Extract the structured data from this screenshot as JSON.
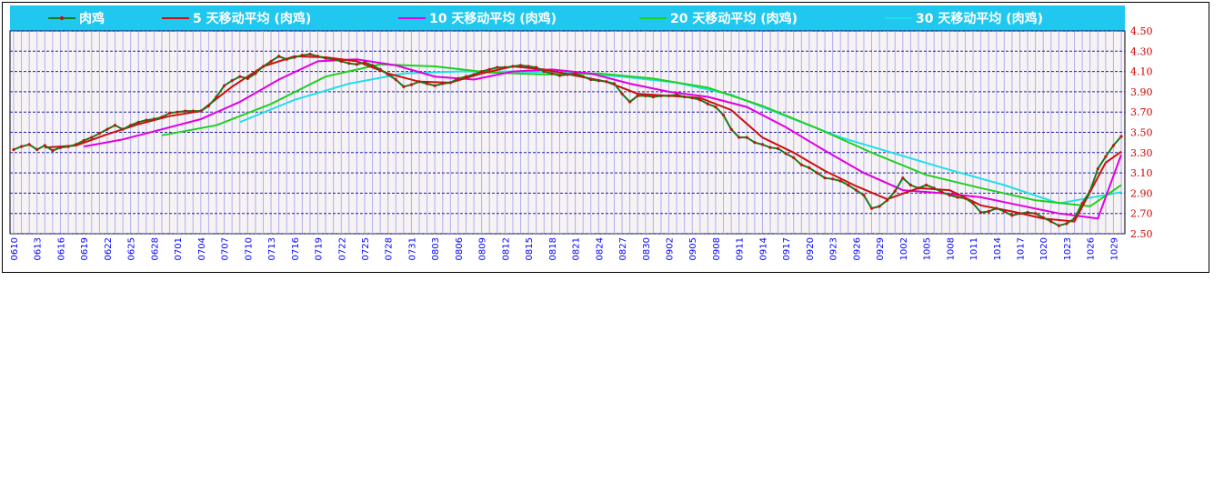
{
  "chart_data": {
    "type": "line",
    "ylim": [
      2.5,
      4.5
    ],
    "y_ticks": [
      "4.50",
      "4.30",
      "4.10",
      "3.90",
      "3.70",
      "3.50",
      "3.30",
      "3.10",
      "2.90",
      "2.70",
      "2.50"
    ],
    "x_tick_labels": [
      "0610",
      "0613",
      "0616",
      "0619",
      "0622",
      "0625",
      "0628",
      "0701",
      "0704",
      "0707",
      "0710",
      "0713",
      "0716",
      "0719",
      "0722",
      "0725",
      "0728",
      "0731",
      "0803",
      "0806",
      "0809",
      "0812",
      "0815",
      "0818",
      "0821",
      "0824",
      "0827",
      "0830",
      "0902",
      "0905",
      "0908",
      "0911",
      "0914",
      "0917",
      "0920",
      "0923",
      "0926",
      "0929",
      "1002",
      "1005",
      "1008",
      "1011",
      "1014",
      "1017",
      "1020",
      "1023",
      "1026",
      "1029"
    ],
    "grid": "horizontal dashed + vertical",
    "legend_position": "top",
    "colors": {
      "header_bg": "#20c8f0",
      "grid_h": "#2020a0",
      "grid_v": "#b0b0f0",
      "tick_y": "#cc0000",
      "tick_x": "#0000ff"
    },
    "series": [
      {
        "name": "肉鸡",
        "color": "#1a7a1a",
        "markers": true,
        "dashed": true,
        "x": [
          0,
          1,
          2,
          3,
          4,
          5,
          6,
          7,
          8,
          9,
          10,
          11,
          12,
          13,
          14,
          15,
          16,
          17,
          18,
          19,
          20,
          21,
          22,
          23,
          24,
          25,
          26,
          27,
          28,
          29,
          30,
          31,
          32,
          33,
          34,
          35,
          36,
          37,
          38,
          39,
          40,
          41,
          42,
          43,
          44,
          45,
          46,
          47,
          48,
          49,
          50,
          51,
          52,
          53,
          54,
          55,
          56,
          57,
          58,
          59,
          60,
          61,
          62,
          63,
          64,
          65,
          66,
          67,
          68,
          69,
          70,
          71,
          72,
          73,
          74,
          75,
          76,
          77,
          78,
          79,
          80,
          81,
          82,
          83,
          84,
          85,
          86,
          87,
          88,
          89,
          90,
          91,
          92,
          93,
          94,
          95,
          96,
          97,
          98,
          99,
          100,
          101,
          102,
          103,
          104,
          105,
          106,
          107,
          108,
          109,
          110,
          111,
          112,
          113,
          114,
          115,
          116,
          117,
          118,
          119,
          120,
          121,
          122,
          123,
          124,
          125,
          126,
          127,
          128,
          129,
          130,
          131,
          132,
          133,
          134,
          135,
          136,
          137,
          138,
          139,
          140,
          141,
          142
        ],
        "values": [
          3.33,
          3.36,
          3.38,
          3.33,
          3.37,
          3.32,
          3.35,
          3.36,
          3.38,
          3.42,
          3.45,
          3.49,
          3.53,
          3.57,
          3.53,
          3.57,
          3.6,
          3.62,
          3.63,
          3.65,
          3.69,
          3.7,
          3.71,
          3.71,
          3.71,
          3.76,
          3.85,
          3.96,
          4.01,
          4.05,
          4.03,
          4.08,
          4.15,
          4.2,
          4.25,
          4.22,
          4.24,
          4.26,
          4.27,
          4.25,
          4.23,
          4.22,
          4.2,
          4.18,
          4.17,
          4.19,
          4.16,
          4.12,
          4.07,
          4.02,
          3.95,
          3.97,
          4.0,
          3.98,
          3.96,
          3.98,
          3.99,
          4.03,
          4.05,
          4.07,
          4.1,
          4.12,
          4.14,
          4.14,
          4.15,
          4.16,
          4.15,
          4.14,
          4.1,
          4.08,
          4.06,
          4.07,
          4.08,
          4.05,
          4.02,
          4.01,
          4.0,
          3.98,
          3.88,
          3.8,
          3.86,
          3.86,
          3.85,
          3.86,
          3.86,
          3.87,
          3.85,
          3.84,
          3.82,
          3.78,
          3.75,
          3.67,
          3.53,
          3.45,
          3.45,
          3.4,
          3.38,
          3.35,
          3.34,
          3.29,
          3.25,
          3.18,
          3.15,
          3.1,
          3.05,
          3.04,
          3.02,
          2.98,
          2.93,
          2.88,
          2.75,
          2.77,
          2.83,
          2.92,
          3.05,
          2.98,
          2.95,
          2.98,
          2.95,
          2.91,
          2.88,
          2.86,
          2.85,
          2.8,
          2.71,
          2.72,
          2.75,
          2.72,
          2.68,
          2.7,
          2.71,
          2.7,
          2.66,
          2.62,
          2.58,
          2.6,
          2.65,
          2.8,
          2.92,
          3.14,
          3.26,
          3.37,
          3.46
        ]
      },
      {
        "name": "5 天移动平均 (肉鸡)",
        "color": "#cc1010",
        "x": [
          4,
          8,
          12,
          16,
          20,
          24,
          28,
          32,
          36,
          40,
          44,
          48,
          52,
          56,
          60,
          64,
          68,
          72,
          76,
          80,
          84,
          88,
          92,
          96,
          100,
          104,
          108,
          112,
          116,
          120,
          124,
          128,
          132,
          136,
          140,
          142
        ],
        "values": [
          3.35,
          3.37,
          3.48,
          3.58,
          3.66,
          3.71,
          3.95,
          4.15,
          4.25,
          4.24,
          4.2,
          4.08,
          4.0,
          3.99,
          4.08,
          4.15,
          4.12,
          4.06,
          4.0,
          3.88,
          3.86,
          3.84,
          3.72,
          3.45,
          3.3,
          3.12,
          2.97,
          2.84,
          2.95,
          2.93,
          2.78,
          2.72,
          2.65,
          2.62,
          3.2,
          3.31
        ]
      },
      {
        "name": "10 天移动平均 (肉鸡)",
        "color": "#e000e0",
        "x": [
          9,
          14,
          19,
          24,
          29,
          34,
          39,
          44,
          49,
          54,
          59,
          64,
          69,
          74,
          79,
          84,
          89,
          94,
          99,
          104,
          109,
          114,
          119,
          124,
          129,
          134,
          139,
          142
        ],
        "values": [
          3.36,
          3.43,
          3.53,
          3.63,
          3.8,
          4.02,
          4.2,
          4.22,
          4.16,
          4.05,
          4.02,
          4.1,
          4.12,
          4.08,
          3.98,
          3.9,
          3.85,
          3.75,
          3.55,
          3.32,
          3.1,
          2.93,
          2.9,
          2.86,
          2.78,
          2.7,
          2.65,
          3.28
        ]
      },
      {
        "name": "20 天移动平均 (肉鸡)",
        "color": "#20d020",
        "x": [
          19,
          26,
          33,
          40,
          47,
          54,
          61,
          68,
          75,
          82,
          89,
          96,
          103,
          110,
          117,
          124,
          131,
          138,
          142
        ],
        "values": [
          3.47,
          3.57,
          3.78,
          4.05,
          4.17,
          4.15,
          4.09,
          4.07,
          4.08,
          4.03,
          3.94,
          3.76,
          3.54,
          3.3,
          3.08,
          2.95,
          2.83,
          2.77,
          2.98
        ]
      },
      {
        "name": "30 天移动平均 (肉鸡)",
        "color": "#20e0e8",
        "x": [
          29,
          36,
          43,
          50,
          57,
          64,
          71,
          78,
          85,
          92,
          99,
          106,
          113,
          120,
          127,
          134,
          142
        ],
        "values": [
          3.6,
          3.82,
          3.98,
          4.08,
          4.1,
          4.1,
          4.09,
          4.05,
          3.99,
          3.87,
          3.66,
          3.45,
          3.29,
          3.13,
          2.98,
          2.8,
          2.91
        ]
      }
    ]
  }
}
